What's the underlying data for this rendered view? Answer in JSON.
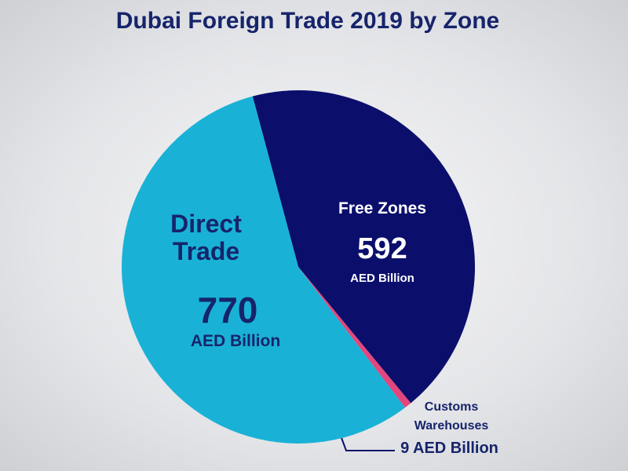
{
  "chart_data": {
    "type": "pie",
    "title": "Dubai Foreign Trade 2019 by Zone",
    "unit": "AED Billion",
    "categories": [
      "Direct Trade",
      "Free Zones",
      "Customs Warehouses"
    ],
    "values": [
      770,
      592,
      9
    ],
    "value_labels": [
      "770",
      "592",
      "9 AED Billion"
    ],
    "colors": [
      "#19b2d6",
      "#0b0f6b",
      "#e2467c"
    ]
  }
}
